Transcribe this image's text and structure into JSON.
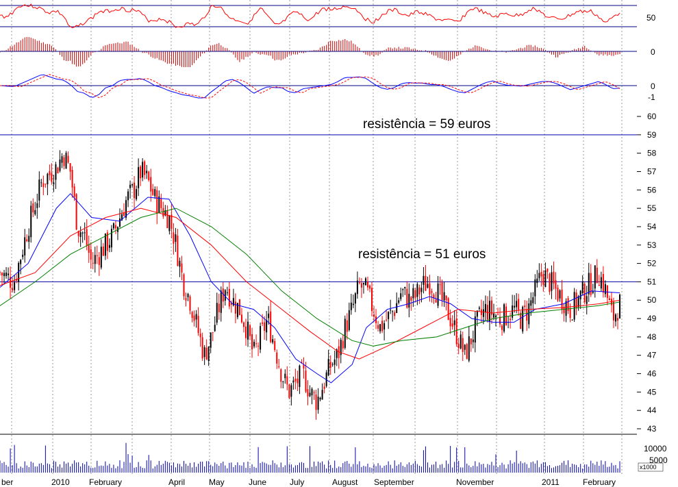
{
  "chart_data": {
    "type": "candlestick",
    "title": "",
    "x_axis": {
      "month_labels": [
        "ber",
        "2010",
        "February",
        "April",
        "May",
        "June",
        "July",
        "August",
        "September",
        "November",
        "2011",
        "February"
      ]
    },
    "y_axis": {
      "range": [
        43,
        60
      ],
      "tick_labels": [
        "60",
        "59",
        "58",
        "57",
        "56",
        "55",
        "54",
        "53",
        "52",
        "51",
        "50",
        "49",
        "48",
        "47",
        "46",
        "45",
        "44",
        "43"
      ]
    },
    "close_series": [
      {
        "x": 0,
        "y": 51.5
      },
      {
        "x": 2,
        "y": 51.0
      },
      {
        "x": 4,
        "y": 54.0
      },
      {
        "x": 6,
        "y": 56.5
      },
      {
        "x": 8,
        "y": 57.2
      },
      {
        "x": 9,
        "y": 58.0
      },
      {
        "x": 10,
        "y": 57.0
      },
      {
        "x": 11,
        "y": 54.0
      },
      {
        "x": 12,
        "y": 53.5
      },
      {
        "x": 13,
        "y": 52.0
      },
      {
        "x": 15,
        "y": 53.0
      },
      {
        "x": 16,
        "y": 53.5
      },
      {
        "x": 17,
        "y": 54.5
      },
      {
        "x": 18,
        "y": 55.5
      },
      {
        "x": 19,
        "y": 56.0
      },
      {
        "x": 20,
        "y": 57.0
      },
      {
        "x": 21,
        "y": 56.5
      },
      {
        "x": 22,
        "y": 55.5
      },
      {
        "x": 23,
        "y": 55.0
      },
      {
        "x": 24,
        "y": 54.5
      },
      {
        "x": 25,
        "y": 53.0
      },
      {
        "x": 26,
        "y": 51.0
      },
      {
        "x": 27,
        "y": 50.0
      },
      {
        "x": 28,
        "y": 48.5
      },
      {
        "x": 29,
        "y": 47.0
      },
      {
        "x": 30,
        "y": 48.0
      },
      {
        "x": 31,
        "y": 49.5
      },
      {
        "x": 32,
        "y": 50.8
      },
      {
        "x": 33,
        "y": 50.0
      },
      {
        "x": 34,
        "y": 49.5
      },
      {
        "x": 35,
        "y": 48.5
      },
      {
        "x": 36,
        "y": 47.0
      },
      {
        "x": 37,
        "y": 48.0
      },
      {
        "x": 38,
        "y": 49.0
      },
      {
        "x": 39,
        "y": 47.5
      },
      {
        "x": 40,
        "y": 46.0
      },
      {
        "x": 41,
        "y": 45.0
      },
      {
        "x": 42,
        "y": 45.5
      },
      {
        "x": 43,
        "y": 46.0
      },
      {
        "x": 44,
        "y": 45.0
      },
      {
        "x": 45,
        "y": 44.5
      },
      {
        "x": 46,
        "y": 45.5
      },
      {
        "x": 47,
        "y": 46.5
      },
      {
        "x": 48,
        "y": 47.0
      },
      {
        "x": 49,
        "y": 48.5
      },
      {
        "x": 50,
        "y": 49.5
      },
      {
        "x": 51,
        "y": 50.8
      },
      {
        "x": 52,
        "y": 50.5
      },
      {
        "x": 53,
        "y": 49.5
      },
      {
        "x": 54,
        "y": 48.5
      },
      {
        "x": 55,
        "y": 49.0
      },
      {
        "x": 56,
        "y": 49.5
      },
      {
        "x": 57,
        "y": 50.5
      },
      {
        "x": 58,
        "y": 50.0
      },
      {
        "x": 59,
        "y": 50.2
      },
      {
        "x": 60,
        "y": 50.8
      },
      {
        "x": 61,
        "y": 51.0
      },
      {
        "x": 62,
        "y": 50.5
      },
      {
        "x": 63,
        "y": 49.8
      },
      {
        "x": 64,
        "y": 49.0
      },
      {
        "x": 65,
        "y": 48.0
      },
      {
        "x": 66,
        "y": 47.0
      },
      {
        "x": 67,
        "y": 48.0
      },
      {
        "x": 68,
        "y": 49.0
      },
      {
        "x": 69,
        "y": 49.5
      },
      {
        "x": 70,
        "y": 49.3
      },
      {
        "x": 71,
        "y": 49.0
      },
      {
        "x": 72,
        "y": 49.2
      },
      {
        "x": 73,
        "y": 49.5
      },
      {
        "x": 74,
        "y": 49.0
      },
      {
        "x": 75,
        "y": 49.5
      },
      {
        "x": 76,
        "y": 50.5
      },
      {
        "x": 77,
        "y": 51.5
      },
      {
        "x": 78,
        "y": 51.0
      },
      {
        "x": 79,
        "y": 50.5
      },
      {
        "x": 80,
        "y": 50.0
      },
      {
        "x": 81,
        "y": 49.5
      },
      {
        "x": 82,
        "y": 50.0
      },
      {
        "x": 83,
        "y": 50.5
      },
      {
        "x": 84,
        "y": 51.0
      },
      {
        "x": 85,
        "y": 51.5
      },
      {
        "x": 86,
        "y": 50.5
      },
      {
        "x": 87,
        "y": 49.0
      },
      {
        "x": 88,
        "y": 49.8
      }
    ],
    "moving_averages": [
      {
        "color": "#0000ff",
        "values": [
          {
            "x": 0,
            "y": 50.7
          },
          {
            "x": 4,
            "y": 52.0
          },
          {
            "x": 8,
            "y": 55.0
          },
          {
            "x": 10,
            "y": 55.8
          },
          {
            "x": 13,
            "y": 54.5
          },
          {
            "x": 17,
            "y": 54.3
          },
          {
            "x": 21,
            "y": 55.6
          },
          {
            "x": 24,
            "y": 55.5
          },
          {
            "x": 27,
            "y": 53.5
          },
          {
            "x": 30,
            "y": 51.0
          },
          {
            "x": 33,
            "y": 49.8
          },
          {
            "x": 36,
            "y": 49.5
          },
          {
            "x": 39,
            "y": 48.5
          },
          {
            "x": 42,
            "y": 46.8
          },
          {
            "x": 45,
            "y": 46.0
          },
          {
            "x": 47,
            "y": 45.5
          },
          {
            "x": 50,
            "y": 46.5
          },
          {
            "x": 52,
            "y": 48.5
          },
          {
            "x": 55,
            "y": 49.5
          },
          {
            "x": 58,
            "y": 49.8
          },
          {
            "x": 61,
            "y": 50.2
          },
          {
            "x": 64,
            "y": 49.8
          },
          {
            "x": 67,
            "y": 49.0
          },
          {
            "x": 70,
            "y": 48.8
          },
          {
            "x": 73,
            "y": 48.8
          },
          {
            "x": 76,
            "y": 49.5
          },
          {
            "x": 80,
            "y": 49.8
          },
          {
            "x": 84,
            "y": 50.5
          },
          {
            "x": 88,
            "y": 50.4
          }
        ]
      },
      {
        "color": "#ff0000",
        "values": [
          {
            "x": 0,
            "y": 50.8
          },
          {
            "x": 5,
            "y": 51.5
          },
          {
            "x": 10,
            "y": 53.5
          },
          {
            "x": 15,
            "y": 54.5
          },
          {
            "x": 20,
            "y": 55.0
          },
          {
            "x": 25,
            "y": 54.5
          },
          {
            "x": 30,
            "y": 53.0
          },
          {
            "x": 35,
            "y": 51.0
          },
          {
            "x": 40,
            "y": 49.5
          },
          {
            "x": 44,
            "y": 48.3
          },
          {
            "x": 48,
            "y": 47.2
          },
          {
            "x": 51,
            "y": 46.8
          },
          {
            "x": 55,
            "y": 47.5
          },
          {
            "x": 60,
            "y": 48.5
          },
          {
            "x": 65,
            "y": 49.5
          },
          {
            "x": 70,
            "y": 49.3
          },
          {
            "x": 75,
            "y": 49.5
          },
          {
            "x": 80,
            "y": 49.6
          },
          {
            "x": 85,
            "y": 49.8
          },
          {
            "x": 88,
            "y": 50.0
          }
        ]
      },
      {
        "color": "#008000",
        "values": [
          {
            "x": 0,
            "y": 49.7
          },
          {
            "x": 5,
            "y": 51.0
          },
          {
            "x": 10,
            "y": 52.5
          },
          {
            "x": 15,
            "y": 53.5
          },
          {
            "x": 20,
            "y": 54.5
          },
          {
            "x": 25,
            "y": 55.0
          },
          {
            "x": 30,
            "y": 54.0
          },
          {
            "x": 35,
            "y": 52.5
          },
          {
            "x": 40,
            "y": 50.5
          },
          {
            "x": 45,
            "y": 49.0
          },
          {
            "x": 50,
            "y": 47.8
          },
          {
            "x": 53,
            "y": 47.5
          },
          {
            "x": 57,
            "y": 47.8
          },
          {
            "x": 62,
            "y": 48.0
          },
          {
            "x": 66,
            "y": 48.5
          },
          {
            "x": 70,
            "y": 49.0
          },
          {
            "x": 75,
            "y": 49.3
          },
          {
            "x": 80,
            "y": 49.5
          },
          {
            "x": 85,
            "y": 49.7
          },
          {
            "x": 88,
            "y": 49.9
          }
        ]
      }
    ],
    "horizontal_lines": [
      {
        "y": 59,
        "label": "resistência = 59 euros",
        "color": "#0000aa"
      },
      {
        "y": 51,
        "label": "resistência = 51 euros",
        "color": "#0000aa"
      }
    ],
    "volume": {
      "tick_labels": [
        "10000",
        "5000"
      ],
      "unit": "x1000"
    },
    "indicator_panels": [
      {
        "tick_labels": [
          "50"
        ]
      },
      {
        "tick_labels": [
          "0"
        ]
      },
      {
        "tick_labels": [
          "0",
          "-1"
        ]
      }
    ],
    "colors": {
      "up_candle": "#000000",
      "down_candle": "#ff0000",
      "rsi_line": "#ff0000",
      "histogram": "#cc0000",
      "macd_line": "#0000ff",
      "signal_line": "#ff0000",
      "volume_bars": "#0000aa",
      "grid": "#999999",
      "separator": "#000080"
    }
  }
}
